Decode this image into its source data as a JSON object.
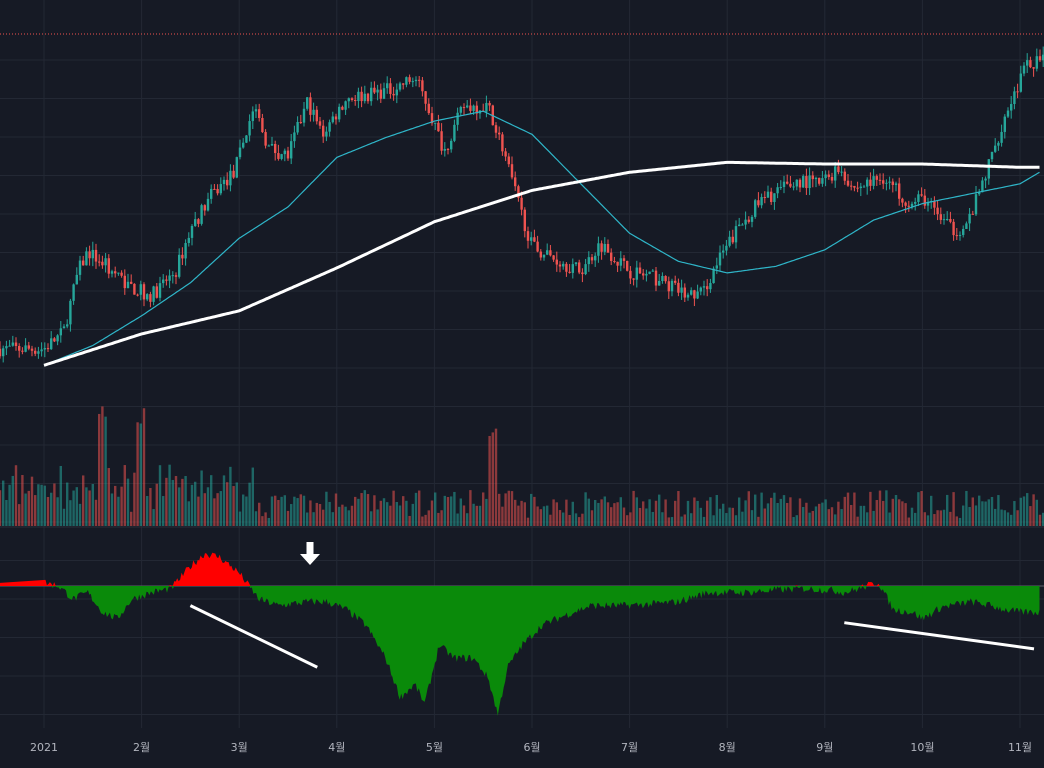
{
  "colors": {
    "background": "#161a25",
    "grid": "#232834",
    "up": "#26a69a",
    "down": "#ef5350",
    "ma_short": "#2fb6c9",
    "ma_long": "#ffffff",
    "osc_positive": "#ff0000",
    "osc_negative": "#0a8a0a",
    "trendline": "#ffffff",
    "reference_line": "#ef5350"
  },
  "time_axis": {
    "labels": [
      "2021",
      "2월",
      "3월",
      "4월",
      "5월",
      "6월",
      "7월",
      "8월",
      "9월",
      "10월",
      "11월"
    ]
  },
  "annotations": {
    "arrow_icon": "down-arrow-icon"
  },
  "chart_data": [
    {
      "type": "candlestick",
      "title": "",
      "x_unit": "month",
      "x_start": 0,
      "x_end": 10.7,
      "ylim": [
        -1.02,
        1.0
      ],
      "grid": true,
      "close_anchors": [
        [
          0,
          -0.92
        ],
        [
          0.2,
          -0.82
        ],
        [
          0.35,
          -0.45
        ],
        [
          0.45,
          -0.33
        ],
        [
          0.6,
          -0.4
        ],
        [
          0.9,
          -0.55
        ],
        [
          1.1,
          -0.6
        ],
        [
          1.35,
          -0.45
        ],
        [
          1.5,
          -0.2
        ],
        [
          1.7,
          0.0
        ],
        [
          1.95,
          0.15
        ],
        [
          2.15,
          0.55
        ],
        [
          2.3,
          0.3
        ],
        [
          2.5,
          0.25
        ],
        [
          2.7,
          0.58
        ],
        [
          2.85,
          0.38
        ],
        [
          3.1,
          0.6
        ],
        [
          3.3,
          0.62
        ],
        [
          3.55,
          0.65
        ],
        [
          3.8,
          0.72
        ],
        [
          3.9,
          0.6
        ],
        [
          4.1,
          0.28
        ],
        [
          4.3,
          0.55
        ],
        [
          4.55,
          0.55
        ],
        [
          4.7,
          0.3
        ],
        [
          4.85,
          -0.02
        ],
        [
          5.0,
          -0.3
        ],
        [
          5.25,
          -0.38
        ],
        [
          5.5,
          -0.45
        ],
        [
          5.7,
          -0.28
        ],
        [
          6.0,
          -0.45
        ],
        [
          6.3,
          -0.5
        ],
        [
          6.6,
          -0.6
        ],
        [
          6.75,
          -0.58
        ],
        [
          6.9,
          -0.4
        ],
        [
          7.1,
          -0.2
        ],
        [
          7.3,
          -0.05
        ],
        [
          7.5,
          0.03
        ],
        [
          7.75,
          0.1
        ],
        [
          7.95,
          0.08
        ],
        [
          8.15,
          0.18
        ],
        [
          8.3,
          0.05
        ],
        [
          8.6,
          0.12
        ],
        [
          8.9,
          -0.05
        ],
        [
          9.0,
          0.0
        ],
        [
          9.3,
          -0.2
        ],
        [
          9.45,
          -0.18
        ],
        [
          9.6,
          0.05
        ],
        [
          9.85,
          0.5
        ],
        [
          10.05,
          0.78
        ],
        [
          10.15,
          0.82
        ]
      ],
      "series": [
        {
          "name": "",
          "kind": "moving_average_short",
          "anchors": [
            [
              0,
              -1.02
            ],
            [
              0.5,
              -0.9
            ],
            [
              1.0,
              -0.72
            ],
            [
              1.5,
              -0.52
            ],
            [
              2.0,
              -0.25
            ],
            [
              2.5,
              -0.06
            ],
            [
              3.0,
              0.24
            ],
            [
              3.5,
              0.36
            ],
            [
              4.0,
              0.46
            ],
            [
              4.5,
              0.52
            ],
            [
              5.0,
              0.38
            ],
            [
              5.5,
              0.08
            ],
            [
              6.0,
              -0.22
            ],
            [
              6.5,
              -0.39
            ],
            [
              7.0,
              -0.46
            ],
            [
              7.5,
              -0.42
            ],
            [
              8.0,
              -0.32
            ],
            [
              8.5,
              -0.14
            ],
            [
              9.0,
              -0.04
            ],
            [
              9.5,
              0.02
            ],
            [
              10.0,
              0.08
            ],
            [
              10.2,
              0.15
            ]
          ]
        },
        {
          "name": "",
          "kind": "moving_average_long",
          "anchors": [
            [
              0,
              -1.02
            ],
            [
              1.0,
              -0.83
            ],
            [
              2.0,
              -0.69
            ],
            [
              3.0,
              -0.43
            ],
            [
              4.0,
              -0.15
            ],
            [
              5.0,
              0.04
            ],
            [
              6.0,
              0.15
            ],
            [
              7.0,
              0.21
            ],
            [
              8.0,
              0.2
            ],
            [
              9.0,
              0.2
            ],
            [
              10.0,
              0.18
            ],
            [
              10.2,
              0.18
            ]
          ]
        }
      ],
      "volume": {
        "spike_months": [
          0.6,
          1.0,
          4.6
        ]
      }
    },
    {
      "type": "area",
      "title": "",
      "baseline": 0,
      "ylim": [
        -1.0,
        0.3
      ],
      "x_start": 0,
      "x_end": 10.2,
      "anchors": [
        [
          0,
          0.03
        ],
        [
          0.15,
          0.0
        ],
        [
          0.3,
          -0.1
        ],
        [
          0.45,
          -0.05
        ],
        [
          0.6,
          -0.2
        ],
        [
          0.75,
          -0.25
        ],
        [
          0.9,
          -0.1
        ],
        [
          1.1,
          -0.05
        ],
        [
          1.3,
          -0.02
        ],
        [
          1.5,
          0.15
        ],
        [
          1.65,
          0.25
        ],
        [
          1.8,
          0.22
        ],
        [
          2.0,
          0.1
        ],
        [
          2.2,
          -0.1
        ],
        [
          2.4,
          -0.15
        ],
        [
          2.7,
          -0.12
        ],
        [
          2.9,
          -0.12
        ],
        [
          3.1,
          -0.18
        ],
        [
          3.3,
          -0.3
        ],
        [
          3.5,
          -0.55
        ],
        [
          3.65,
          -0.85
        ],
        [
          3.8,
          -0.75
        ],
        [
          3.9,
          -0.9
        ],
        [
          4.05,
          -0.45
        ],
        [
          4.2,
          -0.55
        ],
        [
          4.4,
          -0.55
        ],
        [
          4.55,
          -0.7
        ],
        [
          4.65,
          -0.98
        ],
        [
          4.75,
          -0.62
        ],
        [
          4.9,
          -0.45
        ],
        [
          5.1,
          -0.3
        ],
        [
          5.35,
          -0.22
        ],
        [
          5.6,
          -0.15
        ],
        [
          5.9,
          -0.15
        ],
        [
          6.2,
          -0.14
        ],
        [
          6.5,
          -0.12
        ],
        [
          6.8,
          -0.05
        ],
        [
          7.2,
          -0.05
        ],
        [
          7.5,
          -0.03
        ],
        [
          7.8,
          -0.02
        ],
        [
          8.05,
          -0.03
        ],
        [
          8.2,
          -0.05
        ],
        [
          8.35,
          -0.02
        ],
        [
          8.55,
          0.03
        ],
        [
          8.7,
          -0.18
        ],
        [
          8.9,
          -0.2
        ],
        [
          9.0,
          -0.25
        ],
        [
          9.2,
          -0.16
        ],
        [
          9.5,
          -0.12
        ],
        [
          9.7,
          -0.15
        ],
        [
          9.85,
          -0.18
        ],
        [
          10.0,
          -0.2
        ]
      ],
      "trendlines": [
        {
          "from": [
            1.5,
            -0.15
          ],
          "to": [
            2.8,
            -0.62
          ]
        },
        {
          "from": [
            8.2,
            -0.28
          ],
          "to": [
            10.7,
            -0.48
          ]
        }
      ]
    }
  ]
}
